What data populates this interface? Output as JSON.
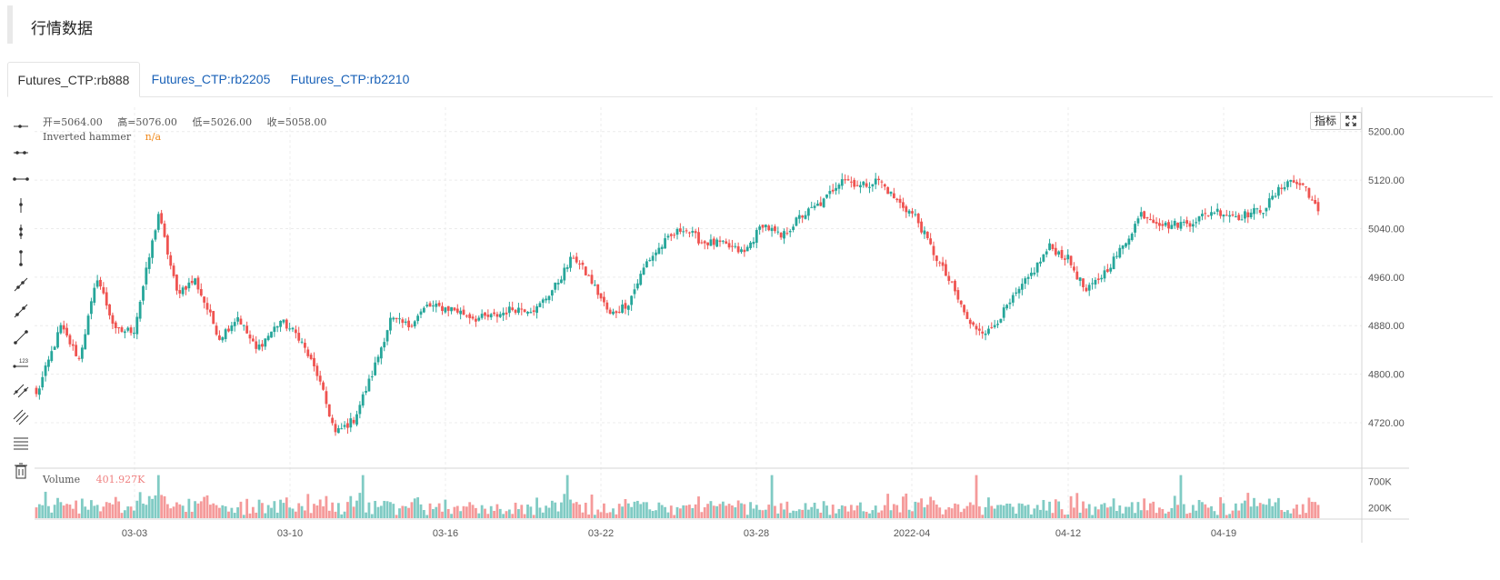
{
  "page": {
    "title": "行情数据"
  },
  "tabs": [
    {
      "label": "Futures_CTP:rb888",
      "active": true
    },
    {
      "label": "Futures_CTP:rb2205",
      "active": false
    },
    {
      "label": "Futures_CTP:rb2210",
      "active": false
    }
  ],
  "chart": {
    "indicator_button": "指标",
    "ohlc": {
      "open": "开=5064.00",
      "high": "高=5076.00",
      "low": "低=5026.00",
      "close": "收=5058.00"
    },
    "indicator": {
      "name": "Inverted hammer",
      "value": "n/a"
    },
    "volume": {
      "name": "Volume",
      "value": "401.927K"
    }
  },
  "colors": {
    "up": "#26a69a",
    "down": "#ef5350",
    "vol_up": "#80cbc4",
    "vol_down": "#f59a9a",
    "grid": "#ececec"
  },
  "chart_data": {
    "type": "candlestick",
    "price_axis": {
      "min": 4660,
      "max": 5240,
      "ticks": [
        "5200.00",
        "5120.00",
        "5040.00",
        "4960.00",
        "4880.00",
        "4800.00",
        "4720.00"
      ]
    },
    "volume_axis": {
      "max": 900000,
      "ticks": [
        "700K",
        "200K"
      ]
    },
    "x_ticks": [
      "03-03",
      "03-10",
      "03-16",
      "03-22",
      "03-28",
      "2022-04",
      "04-12",
      "04-19"
    ],
    "anchors": [
      [
        0,
        4765
      ],
      [
        8,
        4878
      ],
      [
        14,
        4825
      ],
      [
        20,
        4960
      ],
      [
        26,
        4870
      ],
      [
        32,
        4873
      ],
      [
        40,
        5065
      ],
      [
        46,
        4935
      ],
      [
        52,
        4955
      ],
      [
        60,
        4860
      ],
      [
        66,
        4895
      ],
      [
        72,
        4840
      ],
      [
        80,
        4888
      ],
      [
        86,
        4862
      ],
      [
        92,
        4800
      ],
      [
        98,
        4702
      ],
      [
        104,
        4725
      ],
      [
        110,
        4800
      ],
      [
        116,
        4890
      ],
      [
        122,
        4880
      ],
      [
        128,
        4912
      ],
      [
        136,
        4908
      ],
      [
        144,
        4892
      ],
      [
        150,
        4895
      ],
      [
        156,
        4908
      ],
      [
        164,
        4908
      ],
      [
        170,
        4945
      ],
      [
        176,
        4995
      ],
      [
        182,
        4952
      ],
      [
        188,
        4897
      ],
      [
        194,
        4918
      ],
      [
        200,
        4985
      ],
      [
        206,
        5018
      ],
      [
        212,
        5042
      ],
      [
        218,
        5018
      ],
      [
        224,
        5015
      ],
      [
        232,
        5000
      ],
      [
        238,
        5048
      ],
      [
        244,
        5025
      ],
      [
        250,
        5058
      ],
      [
        258,
        5085
      ],
      [
        264,
        5125
      ],
      [
        270,
        5110
      ],
      [
        276,
        5120
      ],
      [
        282,
        5085
      ],
      [
        288,
        5060
      ],
      [
        294,
        5000
      ],
      [
        300,
        4945
      ],
      [
        306,
        4880
      ],
      [
        312,
        4870
      ],
      [
        318,
        4910
      ],
      [
        326,
        4965
      ],
      [
        332,
        5010
      ],
      [
        338,
        4990
      ],
      [
        344,
        4935
      ],
      [
        350,
        4968
      ],
      [
        356,
        5010
      ],
      [
        362,
        5065
      ],
      [
        370,
        5045
      ],
      [
        378,
        5050
      ],
      [
        386,
        5070
      ],
      [
        394,
        5060
      ],
      [
        402,
        5072
      ],
      [
        410,
        5120
      ],
      [
        416,
        5108
      ],
      [
        420,
        5065
      ]
    ]
  }
}
